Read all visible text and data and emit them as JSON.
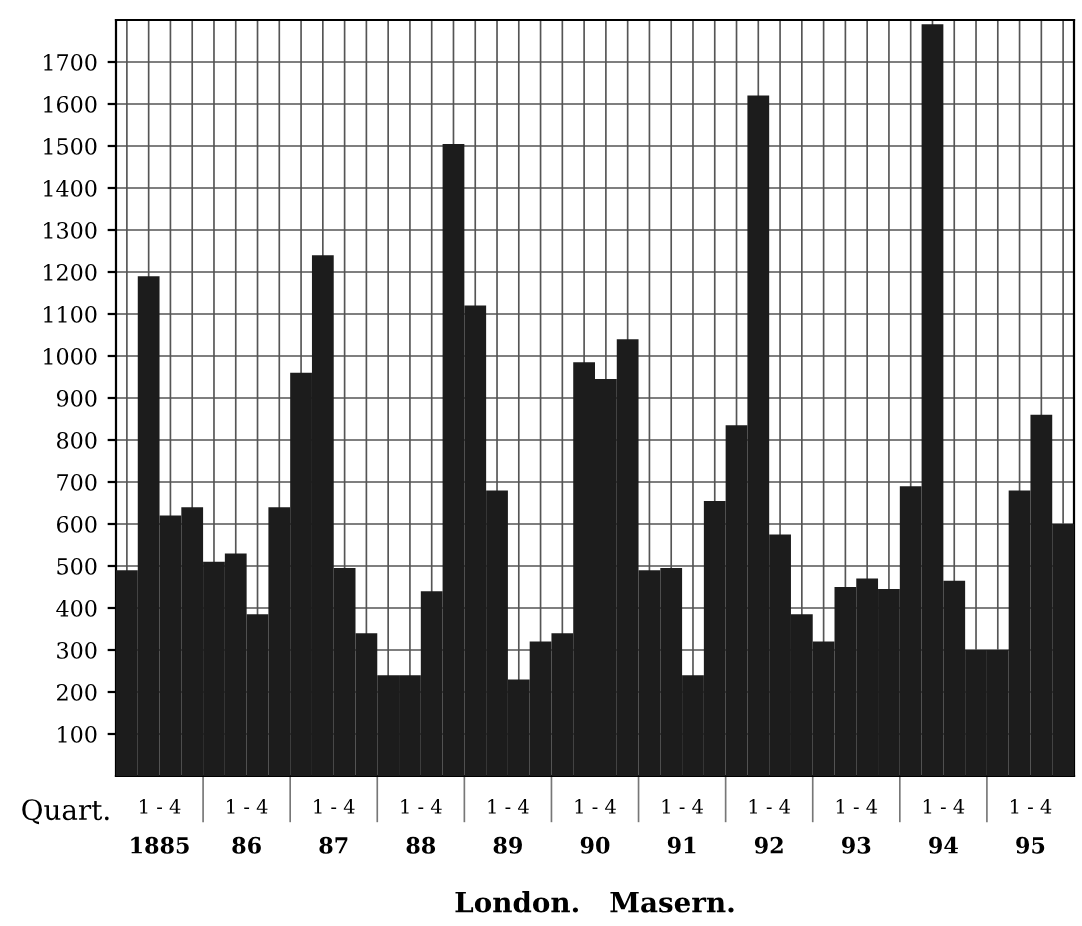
{
  "chart_data": {
    "type": "bar",
    "title": "London.   Masern.",
    "xlabel": "Quart.",
    "categories": [
      null,
      null,
      null,
      null,
      null,
      null,
      null,
      null,
      null,
      null,
      null,
      null,
      null,
      null,
      null,
      null,
      null,
      null,
      null,
      null,
      null,
      null,
      null,
      null,
      null,
      null,
      null,
      null,
      null,
      null,
      null,
      null,
      null,
      null,
      null,
      null,
      null,
      null,
      null,
      null,
      null,
      null,
      null,
      null
    ],
    "values": [
      490,
      1190,
      620,
      640,
      510,
      530,
      385,
      640,
      960,
      1240,
      495,
      340,
      240,
      240,
      440,
      1505,
      1120,
      680,
      230,
      320,
      340,
      985,
      945,
      1040,
      490,
      495,
      240,
      655,
      835,
      1620,
      575,
      385,
      320,
      450,
      470,
      445,
      690,
      1790,
      465,
      300,
      300,
      680,
      860,
      600
    ],
    "color": "#1c1c1c",
    "annotations": [
      "1 - 4",
      "1 - 4",
      "1 - 4",
      "1 - 4",
      "1 - 4",
      "1 - 4",
      "1 - 4",
      "1 - 4",
      "1 - 4",
      "1 - 4",
      "1 - 4",
      "1885",
      "86",
      "87",
      "88",
      "89",
      "90",
      "91",
      "92",
      "93",
      "94",
      "95"
    ],
    "ylim": [
      0,
      1800
    ],
    "yticks": [
      100,
      200,
      300,
      400,
      500,
      600,
      700,
      800,
      900,
      1000,
      1100,
      1200,
      1300,
      1400,
      1500,
      1600,
      1700
    ],
    "grid": true
  }
}
